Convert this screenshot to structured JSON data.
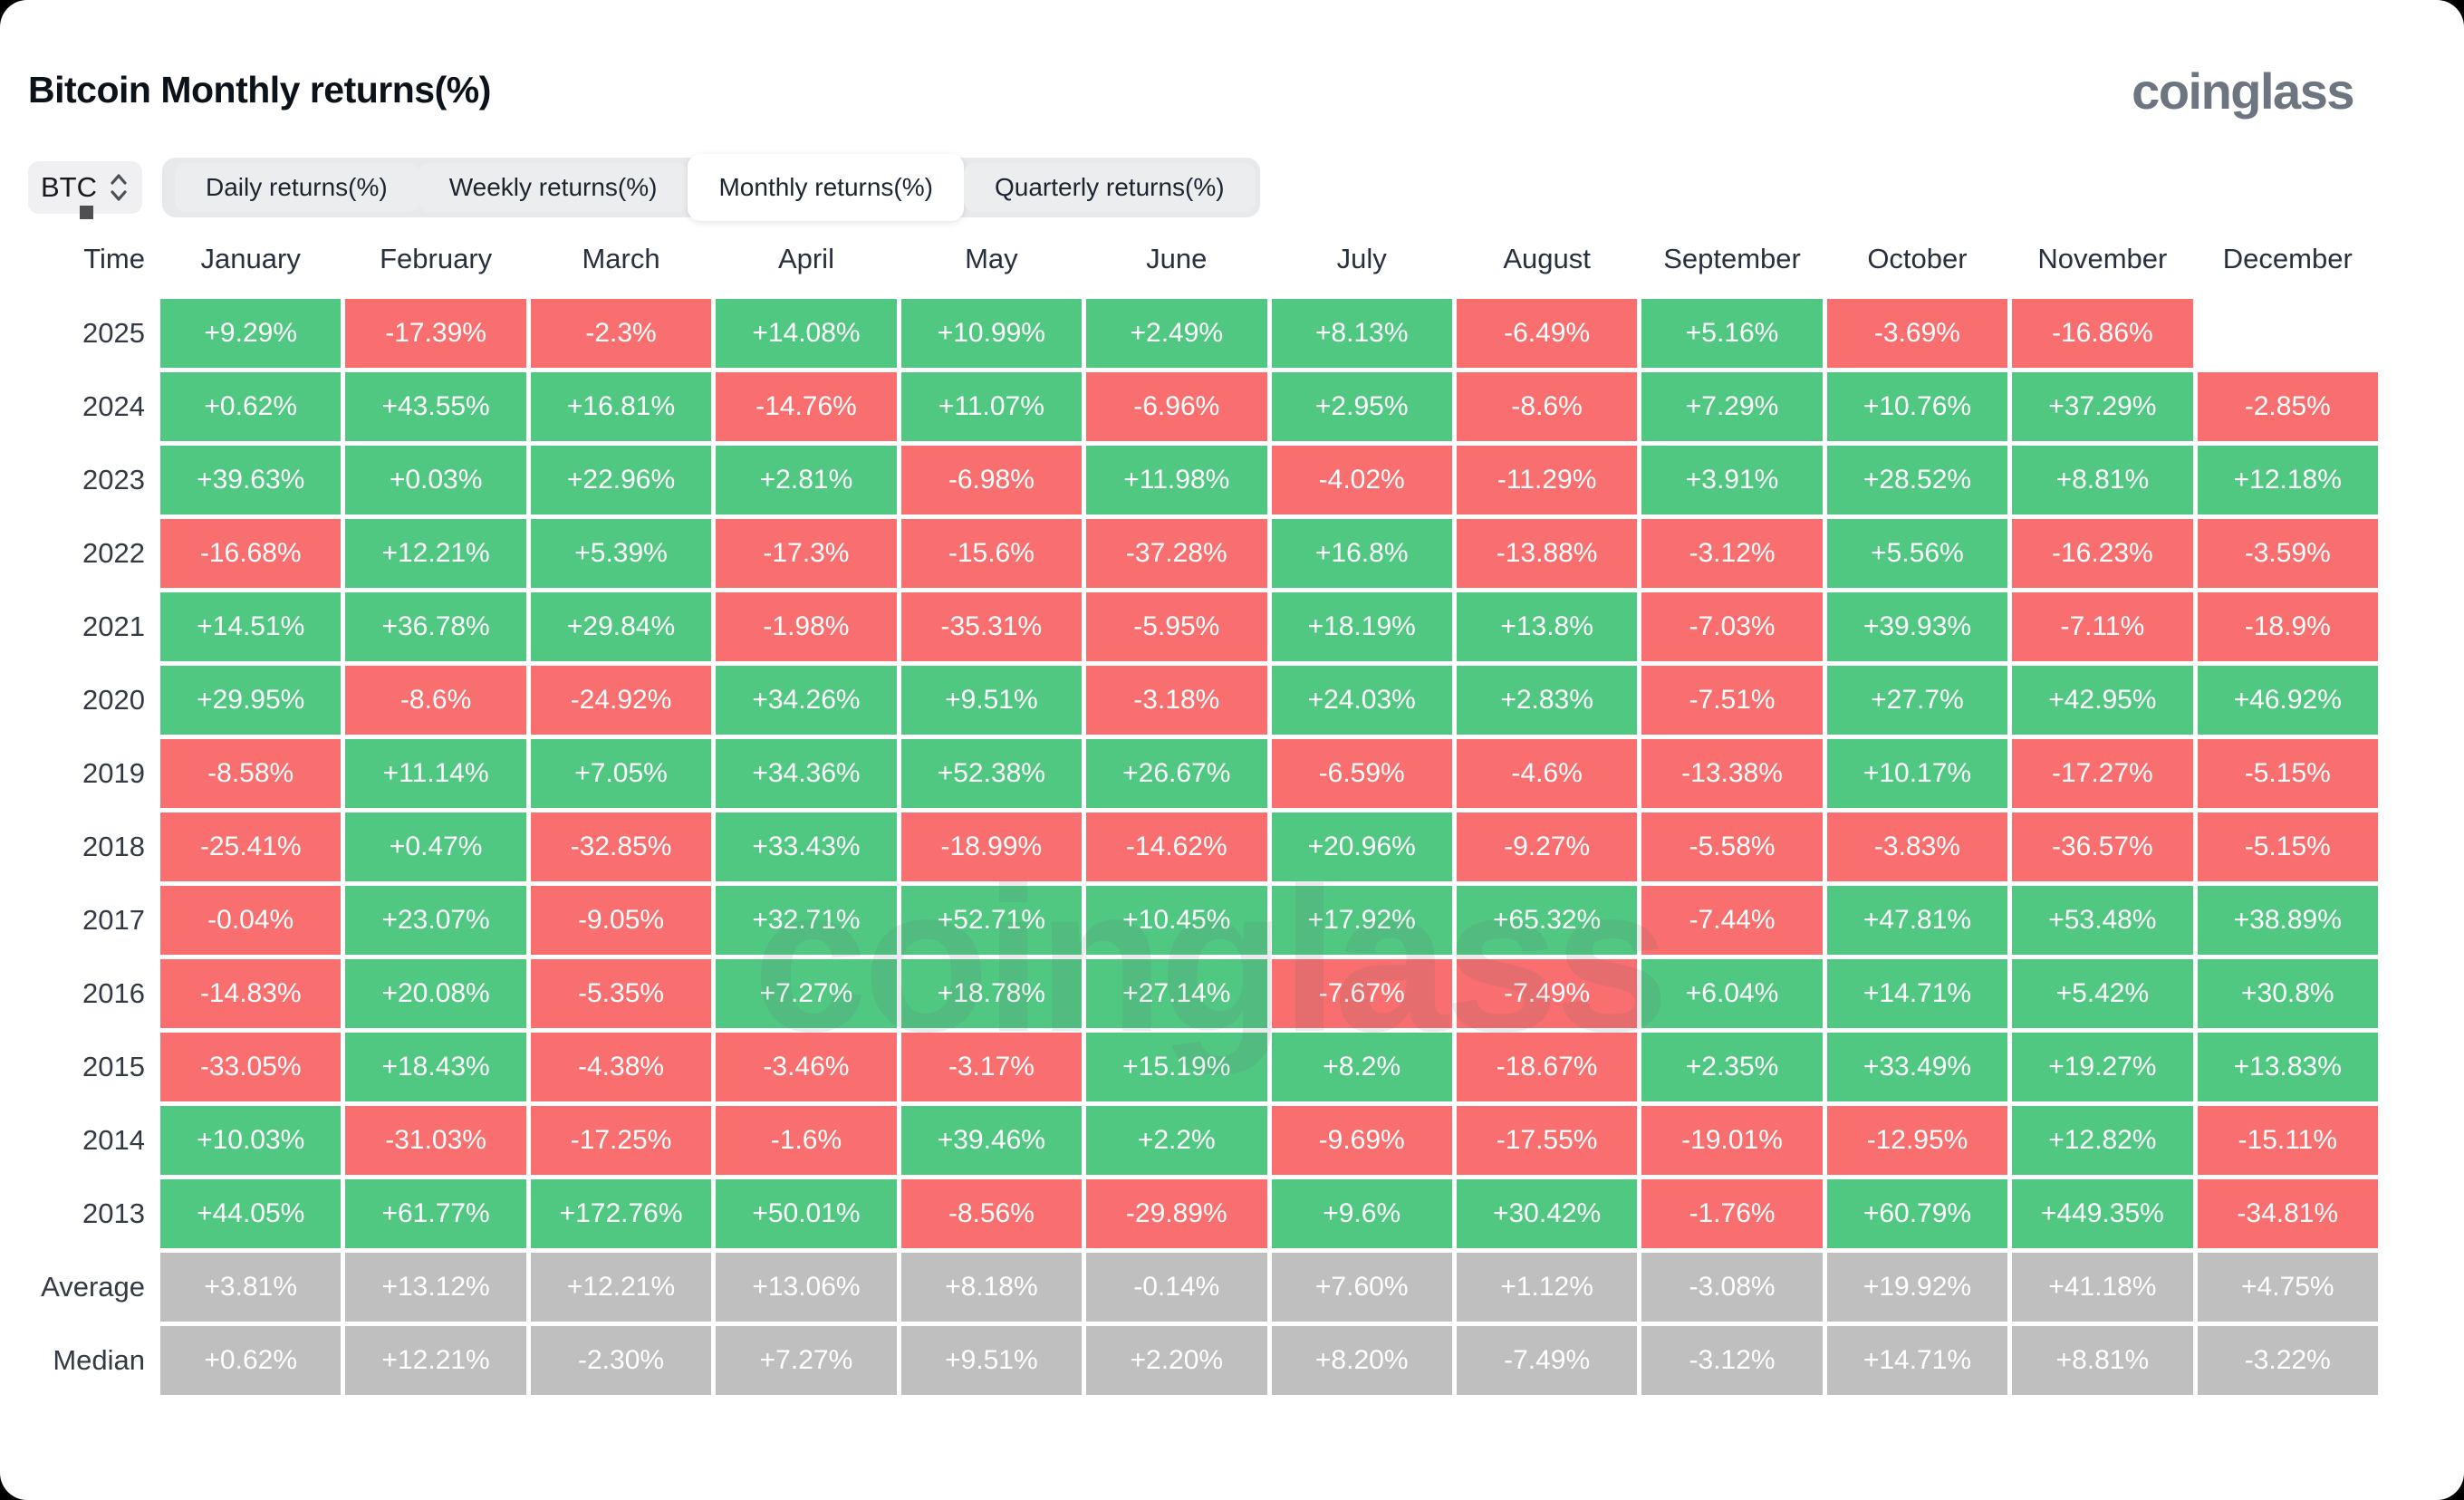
{
  "page": {
    "title": "Bitcoin Monthly returns(%)",
    "brand": "coinglass",
    "watermark": "coinglass"
  },
  "controls": {
    "symbol": "BTC",
    "tabs": [
      {
        "label": "Daily returns(%)",
        "active": false
      },
      {
        "label": "Weekly returns(%)",
        "active": false
      },
      {
        "label": "Monthly returns(%)",
        "active": true
      },
      {
        "label": "Quarterly returns(%)",
        "active": false
      }
    ]
  },
  "colors": {
    "positive": "#50c882",
    "negative": "#f96e6e",
    "neutral": "#bfbfbf"
  },
  "table": {
    "time_header": "Time",
    "months": [
      "January",
      "February",
      "March",
      "April",
      "May",
      "June",
      "July",
      "August",
      "September",
      "October",
      "November",
      "December"
    ],
    "rows": [
      {
        "label": "2025",
        "summary": false,
        "values": [
          "+9.29%",
          "-17.39%",
          "-2.3%",
          "+14.08%",
          "+10.99%",
          "+2.49%",
          "+8.13%",
          "-6.49%",
          "+5.16%",
          "-3.69%",
          "-16.86%",
          ""
        ]
      },
      {
        "label": "2024",
        "summary": false,
        "values": [
          "+0.62%",
          "+43.55%",
          "+16.81%",
          "-14.76%",
          "+11.07%",
          "-6.96%",
          "+2.95%",
          "-8.6%",
          "+7.29%",
          "+10.76%",
          "+37.29%",
          "-2.85%"
        ]
      },
      {
        "label": "2023",
        "summary": false,
        "values": [
          "+39.63%",
          "+0.03%",
          "+22.96%",
          "+2.81%",
          "-6.98%",
          "+11.98%",
          "-4.02%",
          "-11.29%",
          "+3.91%",
          "+28.52%",
          "+8.81%",
          "+12.18%"
        ]
      },
      {
        "label": "2022",
        "summary": false,
        "values": [
          "-16.68%",
          "+12.21%",
          "+5.39%",
          "-17.3%",
          "-15.6%",
          "-37.28%",
          "+16.8%",
          "-13.88%",
          "-3.12%",
          "+5.56%",
          "-16.23%",
          "-3.59%"
        ]
      },
      {
        "label": "2021",
        "summary": false,
        "values": [
          "+14.51%",
          "+36.78%",
          "+29.84%",
          "-1.98%",
          "-35.31%",
          "-5.95%",
          "+18.19%",
          "+13.8%",
          "-7.03%",
          "+39.93%",
          "-7.11%",
          "-18.9%"
        ]
      },
      {
        "label": "2020",
        "summary": false,
        "values": [
          "+29.95%",
          "-8.6%",
          "-24.92%",
          "+34.26%",
          "+9.51%",
          "-3.18%",
          "+24.03%",
          "+2.83%",
          "-7.51%",
          "+27.7%",
          "+42.95%",
          "+46.92%"
        ]
      },
      {
        "label": "2019",
        "summary": false,
        "values": [
          "-8.58%",
          "+11.14%",
          "+7.05%",
          "+34.36%",
          "+52.38%",
          "+26.67%",
          "-6.59%",
          "-4.6%",
          "-13.38%",
          "+10.17%",
          "-17.27%",
          "-5.15%"
        ]
      },
      {
        "label": "2018",
        "summary": false,
        "values": [
          "-25.41%",
          "+0.47%",
          "-32.85%",
          "+33.43%",
          "-18.99%",
          "-14.62%",
          "+20.96%",
          "-9.27%",
          "-5.58%",
          "-3.83%",
          "-36.57%",
          "-5.15%"
        ]
      },
      {
        "label": "2017",
        "summary": false,
        "values": [
          "-0.04%",
          "+23.07%",
          "-9.05%",
          "+32.71%",
          "+52.71%",
          "+10.45%",
          "+17.92%",
          "+65.32%",
          "-7.44%",
          "+47.81%",
          "+53.48%",
          "+38.89%"
        ]
      },
      {
        "label": "2016",
        "summary": false,
        "values": [
          "-14.83%",
          "+20.08%",
          "-5.35%",
          "+7.27%",
          "+18.78%",
          "+27.14%",
          "-7.67%",
          "-7.49%",
          "+6.04%",
          "+14.71%",
          "+5.42%",
          "+30.8%"
        ]
      },
      {
        "label": "2015",
        "summary": false,
        "values": [
          "-33.05%",
          "+18.43%",
          "-4.38%",
          "-3.46%",
          "-3.17%",
          "+15.19%",
          "+8.2%",
          "-18.67%",
          "+2.35%",
          "+33.49%",
          "+19.27%",
          "+13.83%"
        ]
      },
      {
        "label": "2014",
        "summary": false,
        "values": [
          "+10.03%",
          "-31.03%",
          "-17.25%",
          "-1.6%",
          "+39.46%",
          "+2.2%",
          "-9.69%",
          "-17.55%",
          "-19.01%",
          "-12.95%",
          "+12.82%",
          "-15.11%"
        ]
      },
      {
        "label": "2013",
        "summary": false,
        "values": [
          "+44.05%",
          "+61.77%",
          "+172.76%",
          "+50.01%",
          "-8.56%",
          "-29.89%",
          "+9.6%",
          "+30.42%",
          "-1.76%",
          "+60.79%",
          "+449.35%",
          "-34.81%"
        ]
      },
      {
        "label": "Average",
        "summary": true,
        "values": [
          "+3.81%",
          "+13.12%",
          "+12.21%",
          "+13.06%",
          "+8.18%",
          "-0.14%",
          "+7.60%",
          "+1.12%",
          "-3.08%",
          "+19.92%",
          "+41.18%",
          "+4.75%"
        ]
      },
      {
        "label": "Median",
        "summary": true,
        "values": [
          "+0.62%",
          "+12.21%",
          "-2.30%",
          "+7.27%",
          "+9.51%",
          "+2.20%",
          "+8.20%",
          "-7.49%",
          "-3.12%",
          "+14.71%",
          "+8.81%",
          "-3.22%"
        ]
      }
    ]
  }
}
